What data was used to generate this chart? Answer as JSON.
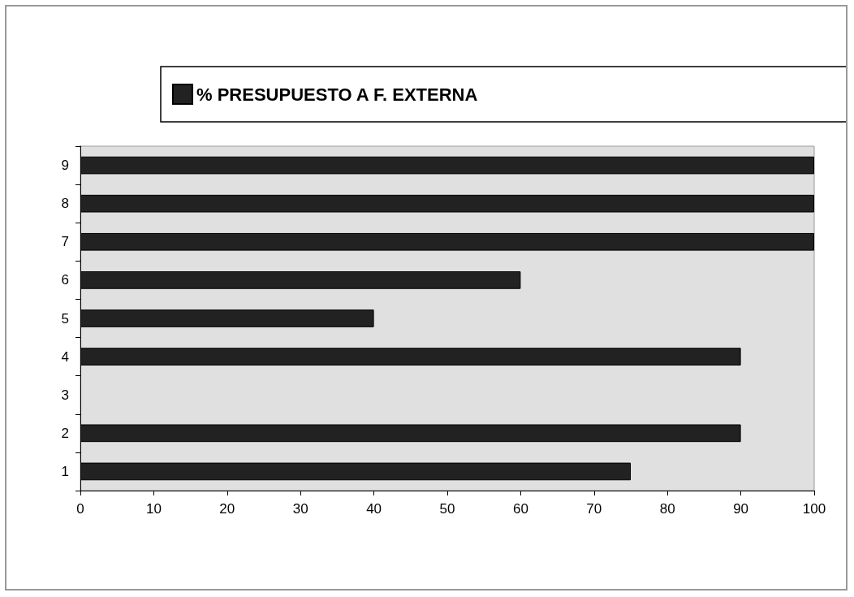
{
  "chart_data": {
    "type": "bar",
    "orientation": "horizontal",
    "categories": [
      "9",
      "8",
      "7",
      "6",
      "5",
      "4",
      "3",
      "2",
      "1"
    ],
    "series": [
      {
        "name": "% PRESUPUESTO A F. EXTERNA",
        "color": "#222222",
        "values": [
          100,
          100,
          100,
          60,
          40,
          90,
          null,
          90,
          75
        ]
      }
    ],
    "xlim": [
      0,
      100
    ],
    "xticks": [
      0,
      10,
      20,
      30,
      40,
      50,
      60,
      70,
      80,
      90,
      100
    ],
    "grid": false,
    "legend": "top"
  }
}
